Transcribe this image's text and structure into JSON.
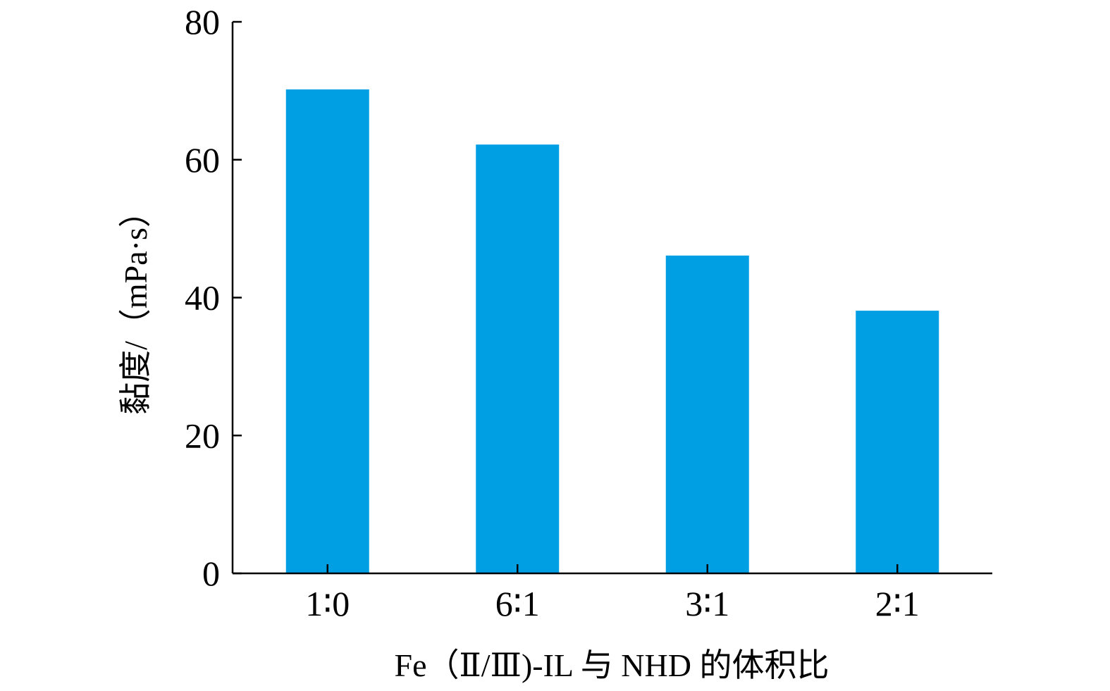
{
  "chart_data": {
    "type": "bar",
    "categories": [
      "1∶0",
      "6∶1",
      "3∶1",
      "2∶1"
    ],
    "values": [
      70.2,
      62.2,
      46.1,
      38.1
    ],
    "xlabel": "Fe（Ⅱ/Ⅲ)-IL 与 NHD 的体积比",
    "ylabel": "黏度/（mPa·s）",
    "ylim": [
      0,
      80
    ],
    "yticks": [
      "0",
      "20",
      "40",
      "60",
      "80"
    ],
    "grid": false,
    "bar_color": "#009FE3"
  }
}
